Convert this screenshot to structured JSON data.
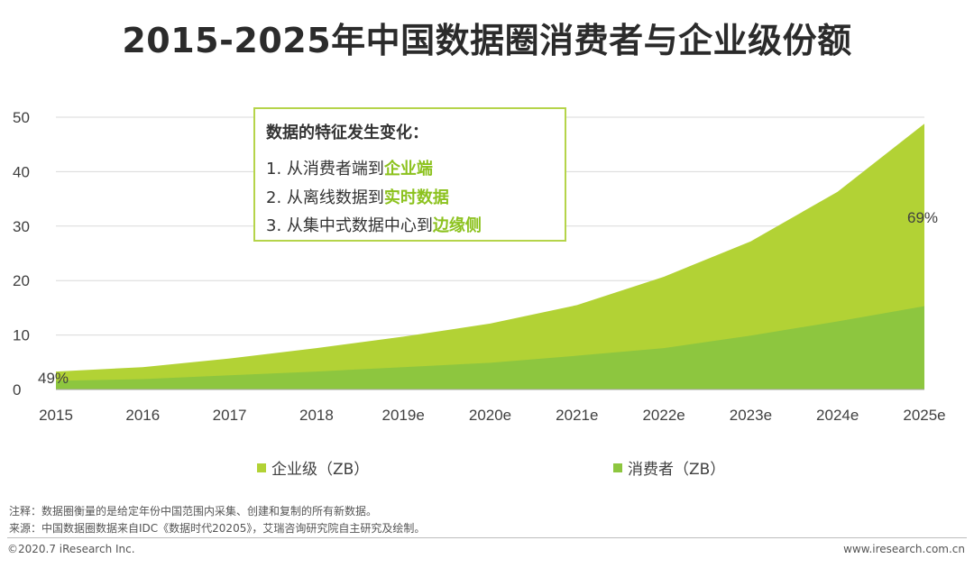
{
  "title": "2015-2025年中国数据圈消费者与企业级份额",
  "colors": {
    "enterprise": "#b2d235",
    "consumer": "#8dc63f",
    "grid": "#d9d9d9",
    "accent": "#8cc21e"
  },
  "callout": {
    "heading": "数据的特征发生变化：",
    "items": [
      {
        "prefix": "1.  从消费者端到",
        "highlight": "企业端"
      },
      {
        "prefix": "2.  从离线数据到",
        "highlight": "实时数据"
      },
      {
        "prefix": "3.  从集中式数据中心到",
        "highlight": "边缘侧"
      }
    ]
  },
  "legend": {
    "enterprise": "企业级（ZB）",
    "consumer": "消费者（ZB）"
  },
  "notes": {
    "note": "注释：数据圈衡量的是给定年份中国范围内采集、创建和复制的所有新数据。",
    "source": "来源：中国数据圈数据来自IDC《数据时代20205》，艾瑞咨询研究院自主研究及绘制。"
  },
  "footer": {
    "copyright": "©2020.7 iResearch Inc.",
    "website": "www.iresearch.com.cn"
  },
  "chart_data": {
    "type": "area",
    "stacked": true,
    "categories": [
      "2015",
      "2016",
      "2017",
      "2018",
      "2019e",
      "2020e",
      "2021e",
      "2022e",
      "2023e",
      "2024e",
      "2025e"
    ],
    "series": [
      {
        "name": "消费者（ZB）",
        "values": [
          1.6,
          1.9,
          2.6,
          3.3,
          4.1,
          4.9,
          6.2,
          7.6,
          9.9,
          12.5,
          15.3
        ]
      },
      {
        "name": "企业级（ZB）",
        "values": [
          1.7,
          2.2,
          3.1,
          4.3,
          5.6,
          7.2,
          9.3,
          13.1,
          17.3,
          23.8,
          33.5
        ]
      }
    ],
    "annotations": [
      {
        "category": "2015",
        "text": "49%"
      },
      {
        "category": "2025e",
        "text": "69%"
      }
    ],
    "yticks": [
      0,
      10,
      20,
      30,
      40,
      50
    ],
    "ylim": [
      0,
      50
    ],
    "grid": true,
    "legend_position": "bottom"
  }
}
